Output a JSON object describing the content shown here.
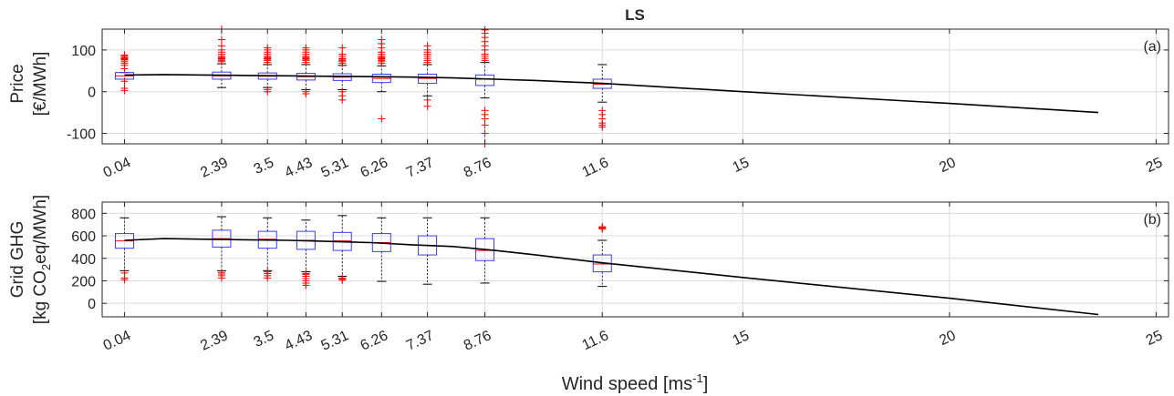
{
  "chart_data": {
    "type": "box",
    "title": "LS",
    "xlabel": "Wind speed [ms",
    "xlabel_sup": "-1",
    "xlabel_end": "]",
    "xlim": [
      -0.5,
      25.3
    ],
    "x_ticks": [
      {
        "value": 0.04,
        "label": "0.04"
      },
      {
        "value": 2.39,
        "label": "2.39"
      },
      {
        "value": 3.5,
        "label": "3.5"
      },
      {
        "value": 4.43,
        "label": "4.43"
      },
      {
        "value": 5.31,
        "label": "5.31"
      },
      {
        "value": 6.26,
        "label": "6.26"
      },
      {
        "value": 7.37,
        "label": "7.37"
      },
      {
        "value": 8.76,
        "label": "8.76"
      },
      {
        "value": 11.6,
        "label": "11.6"
      },
      {
        "value": 15,
        "label": "15"
      },
      {
        "value": 20,
        "label": "20"
      },
      {
        "value": 25,
        "label": "25"
      }
    ],
    "grid": true,
    "colors": {
      "box": "#3b3bff",
      "median": "#ff0000",
      "outlier": "#ff0000",
      "whisker": "#000000",
      "line": "#000000",
      "grid": "#dcdcdc"
    },
    "panels": [
      {
        "id": "a",
        "annotation": "(a)",
        "ylabel_line1": "Price",
        "ylabel_line2": "[€/MWh]",
        "ylim": [
          -125,
          150
        ],
        "yticks": [
          {
            "value": -100,
            "label": "-100"
          },
          {
            "value": 0,
            "label": "0"
          },
          {
            "value": 100,
            "label": "100"
          }
        ],
        "boxes": [
          {
            "x": 0.04,
            "q1": 30,
            "median": 38,
            "q3": 46,
            "whisker_low": 30,
            "whisker_high": 46,
            "outliers": [
              3,
              8,
              25,
              55,
              63,
              68,
              72,
              76,
              78,
              80,
              82,
              85,
              88
            ]
          },
          {
            "x": 2.39,
            "q1": 30,
            "median": 38,
            "q3": 47,
            "whisker_low": 10,
            "whisker_high": 67,
            "outliers": [
              72,
              75,
              78,
              80,
              82,
              85,
              90,
              95,
              100,
              110,
              125,
              150
            ]
          },
          {
            "x": 3.5,
            "q1": 30,
            "median": 37,
            "q3": 45,
            "whisker_low": 10,
            "whisker_high": 65,
            "outliers": [
              0,
              5,
              70,
              75,
              78,
              80,
              82,
              85,
              90,
              95,
              100,
              105
            ]
          },
          {
            "x": 4.43,
            "q1": 28,
            "median": 36,
            "q3": 44,
            "whisker_low": 5,
            "whisker_high": 65,
            "outliers": [
              -5,
              0,
              70,
              75,
              78,
              80,
              82,
              85,
              90,
              95,
              100,
              105
            ]
          },
          {
            "x": 5.31,
            "q1": 27,
            "median": 35,
            "q3": 43,
            "whisker_low": 5,
            "whisker_high": 63,
            "outliers": [
              -20,
              -10,
              0,
              68,
              72,
              75,
              78,
              80,
              85,
              90,
              105
            ]
          },
          {
            "x": 6.26,
            "q1": 22,
            "median": 32,
            "q3": 42,
            "whisker_low": 0,
            "whisker_high": 62,
            "outliers": [
              -65,
              68,
              72,
              75,
              78,
              80,
              82,
              85,
              90,
              95,
              105,
              115,
              125
            ]
          },
          {
            "x": 7.37,
            "q1": 20,
            "median": 32,
            "q3": 42,
            "whisker_low": -10,
            "whisker_high": 65,
            "outliers": [
              -35,
              -20,
              70,
              75,
              80,
              85,
              90,
              95,
              100,
              110
            ]
          },
          {
            "x": 8.76,
            "q1": 15,
            "median": 30,
            "q3": 40,
            "whisker_low": -15,
            "whisker_high": 70,
            "outliers": [
              -125,
              -100,
              -80,
              -65,
              -55,
              -45,
              75,
              80,
              85,
              90,
              100,
              110,
              120,
              130,
              140,
              148
            ]
          },
          {
            "x": 11.6,
            "q1": 8,
            "median": 18,
            "q3": 30,
            "whisker_low": -25,
            "whisker_high": 65,
            "outliers": [
              -85,
              -80,
              -75,
              -65,
              -55,
              -45
            ]
          }
        ],
        "line": {
          "x": [
            0.04,
            1.0,
            2.0,
            3.0,
            4.0,
            5.0,
            6.0,
            7.0,
            8.0,
            9.0,
            10.0,
            11.6,
            15.0,
            20.0,
            23.6
          ],
          "y": [
            40,
            41,
            40,
            39,
            38,
            37,
            36,
            35,
            33,
            30,
            27,
            20,
            0,
            -28,
            -50
          ]
        }
      },
      {
        "id": "b",
        "annotation": "(b)",
        "ylabel_line1": "Grid GHG",
        "ylabel_line2_pre": "[kg CO",
        "ylabel_line2_sub": "2",
        "ylabel_line2_post": "eq/MWh]",
        "ylim": [
          -120,
          900
        ],
        "yticks": [
          {
            "value": 0,
            "label": "0"
          },
          {
            "value": 200,
            "label": "200"
          },
          {
            "value": 400,
            "label": "400"
          },
          {
            "value": 600,
            "label": "600"
          },
          {
            "value": 800,
            "label": "800"
          }
        ],
        "boxes": [
          {
            "x": 0.04,
            "q1": 490,
            "median": 555,
            "q3": 620,
            "whisker_low": 290,
            "whisker_high": 760,
            "outliers": [
              210,
              225,
              270
            ]
          },
          {
            "x": 2.39,
            "q1": 500,
            "median": 575,
            "q3": 650,
            "whisker_low": 290,
            "whisker_high": 770,
            "outliers": [
              225,
              245,
              260,
              275
            ]
          },
          {
            "x": 3.5,
            "q1": 490,
            "median": 570,
            "q3": 640,
            "whisker_low": 290,
            "whisker_high": 760,
            "outliers": [
              225,
              245,
              265,
              280
            ]
          },
          {
            "x": 4.43,
            "q1": 480,
            "median": 560,
            "q3": 640,
            "whisker_low": 280,
            "whisker_high": 740,
            "outliers": [
              160,
              180,
              200,
              220,
              240,
              255,
              265
            ]
          },
          {
            "x": 5.31,
            "q1": 470,
            "median": 555,
            "q3": 630,
            "whisker_low": 240,
            "whisker_high": 780,
            "outliers": [
              205,
              215,
              225
            ]
          },
          {
            "x": 6.26,
            "q1": 460,
            "median": 540,
            "q3": 620,
            "whisker_low": 195,
            "whisker_high": 760,
            "outliers": []
          },
          {
            "x": 7.37,
            "q1": 430,
            "median": 515,
            "q3": 600,
            "whisker_low": 170,
            "whisker_high": 760,
            "outliers": []
          },
          {
            "x": 8.76,
            "q1": 380,
            "median": 470,
            "q3": 575,
            "whisker_low": 180,
            "whisker_high": 760,
            "outliers": []
          },
          {
            "x": 11.6,
            "q1": 280,
            "median": 350,
            "q3": 430,
            "whisker_low": 150,
            "whisker_high": 560,
            "outliers": [
              660,
              670,
              675,
              680
            ]
          }
        ],
        "line": {
          "x": [
            0.04,
            1.0,
            2.0,
            3.0,
            4.0,
            5.0,
            6.0,
            7.0,
            8.0,
            9.0,
            10.0,
            11.6,
            15.0,
            20.0,
            23.6
          ],
          "y": [
            560,
            575,
            570,
            565,
            560,
            550,
            540,
            520,
            505,
            470,
            430,
            360,
            230,
            45,
            -100
          ]
        }
      }
    ]
  }
}
